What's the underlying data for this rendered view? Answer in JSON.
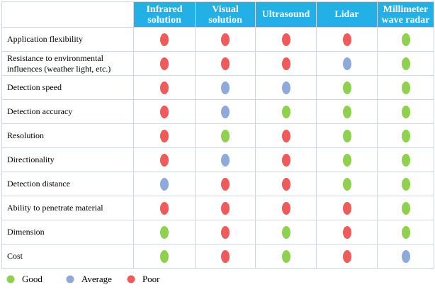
{
  "header": {
    "columns": [
      "Infrared solution",
      "Visual solution",
      "Ultrasound",
      "Lidar",
      "Millimeter wave radar"
    ]
  },
  "rows": [
    {
      "label": "Application flexibility",
      "ratings": [
        "Poor",
        "Poor",
        "Poor",
        "Poor",
        "Good"
      ]
    },
    {
      "label": "Resistance to environmental influences (weather light, etc.)",
      "ratings": [
        "Poor",
        "Poor",
        "Poor",
        "Average",
        "Good"
      ]
    },
    {
      "label": "Detection speed",
      "ratings": [
        "Poor",
        "Average",
        "Average",
        "Good",
        "Good"
      ]
    },
    {
      "label": "Detection accuracy",
      "ratings": [
        "Poor",
        "Average",
        "Good",
        "Good",
        "Good"
      ]
    },
    {
      "label": "Resolution",
      "ratings": [
        "Poor",
        "Good",
        "Poor",
        "Good",
        "Good"
      ]
    },
    {
      "label": "Directionality",
      "ratings": [
        "Poor",
        "Average",
        "Poor",
        "Good",
        "Good"
      ]
    },
    {
      "label": "Detection distance",
      "ratings": [
        "Average",
        "Poor",
        "Poor",
        "Good",
        "Good"
      ]
    },
    {
      "label": "Ability to penetrate material",
      "ratings": [
        "Poor",
        "Poor",
        "Poor",
        "Poor",
        "Good"
      ]
    },
    {
      "label": "Dimension",
      "ratings": [
        "Good",
        "Poor",
        "Good",
        "Poor",
        "Good"
      ]
    },
    {
      "label": "Cost",
      "ratings": [
        "Good",
        "Poor",
        "Good",
        "Poor",
        "Average"
      ]
    }
  ],
  "legend": [
    {
      "label": "Good",
      "color": "#8fd14f"
    },
    {
      "label": "Average",
      "color": "#8eaadb"
    },
    {
      "label": "Poor",
      "color": "#ef5b5b"
    }
  ]
}
